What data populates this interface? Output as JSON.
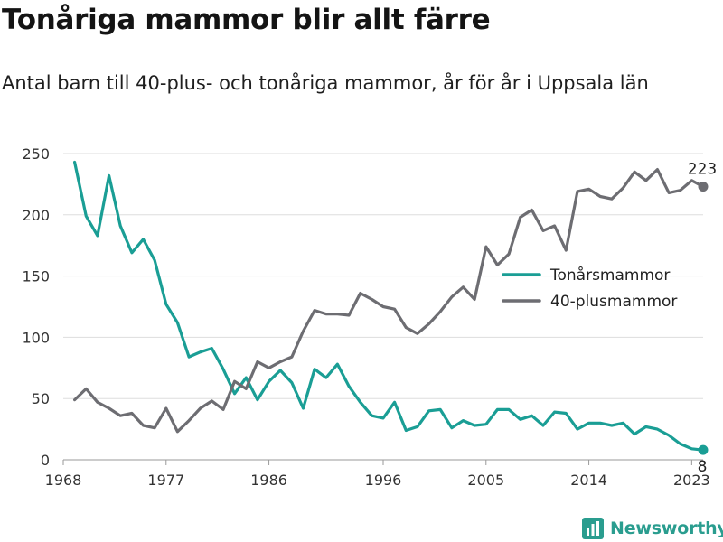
{
  "chart_data": {
    "type": "line",
    "title": "Tonåriga mammor blir allt färre",
    "subtitle": "Antal barn till 40-plus- och tonåriga mammor, år för år i Uppsala län",
    "xlabel": "",
    "ylabel": "",
    "xlim": [
      1968,
      2024
    ],
    "ylim": [
      0,
      250
    ],
    "x_ticks": [
      1968,
      1977,
      1986,
      1996,
      2005,
      2014,
      2023
    ],
    "y_ticks": [
      0,
      50,
      100,
      150,
      200,
      250
    ],
    "grid": "horizontal",
    "legend_position": "right",
    "x": [
      1969,
      1970,
      1971,
      1972,
      1973,
      1974,
      1975,
      1976,
      1977,
      1978,
      1979,
      1980,
      1981,
      1982,
      1983,
      1984,
      1985,
      1986,
      1987,
      1988,
      1989,
      1990,
      1991,
      1992,
      1993,
      1994,
      1995,
      1996,
      1997,
      1998,
      1999,
      2000,
      2001,
      2002,
      2003,
      2004,
      2005,
      2006,
      2007,
      2008,
      2009,
      2010,
      2011,
      2012,
      2013,
      2014,
      2015,
      2016,
      2017,
      2018,
      2019,
      2020,
      2021,
      2022,
      2023,
      2024
    ],
    "series": [
      {
        "name": "Tonårsmammor",
        "color": "#1a9e95",
        "values": [
          243,
          199,
          183,
          232,
          191,
          169,
          180,
          163,
          127,
          112,
          84,
          88,
          91,
          74,
          54,
          67,
          49,
          64,
          73,
          63,
          42,
          74,
          67,
          78,
          60,
          47,
          36,
          34,
          47,
          24,
          27,
          40,
          41,
          26,
          32,
          28,
          29,
          41,
          41,
          33,
          36,
          28,
          39,
          38,
          25,
          30,
          30,
          28,
          30,
          21,
          27,
          25,
          20,
          13,
          9,
          8
        ],
        "end_label": "8"
      },
      {
        "name": "40-plusmammor",
        "color": "#6d6d72",
        "values": [
          49,
          58,
          47,
          42,
          36,
          38,
          28,
          26,
          42,
          23,
          32,
          42,
          48,
          41,
          64,
          58,
          80,
          75,
          80,
          84,
          105,
          122,
          119,
          119,
          118,
          136,
          131,
          125,
          123,
          108,
          103,
          111,
          121,
          133,
          141,
          131,
          174,
          159,
          168,
          198,
          204,
          187,
          191,
          171,
          219,
          221,
          215,
          213,
          222,
          235,
          228,
          237,
          218,
          220,
          228,
          223
        ],
        "end_label": "223"
      }
    ]
  },
  "brand": {
    "name": "Newsworthy",
    "icon": "newsworthy-logo-icon",
    "color": "#2a9d8f"
  }
}
